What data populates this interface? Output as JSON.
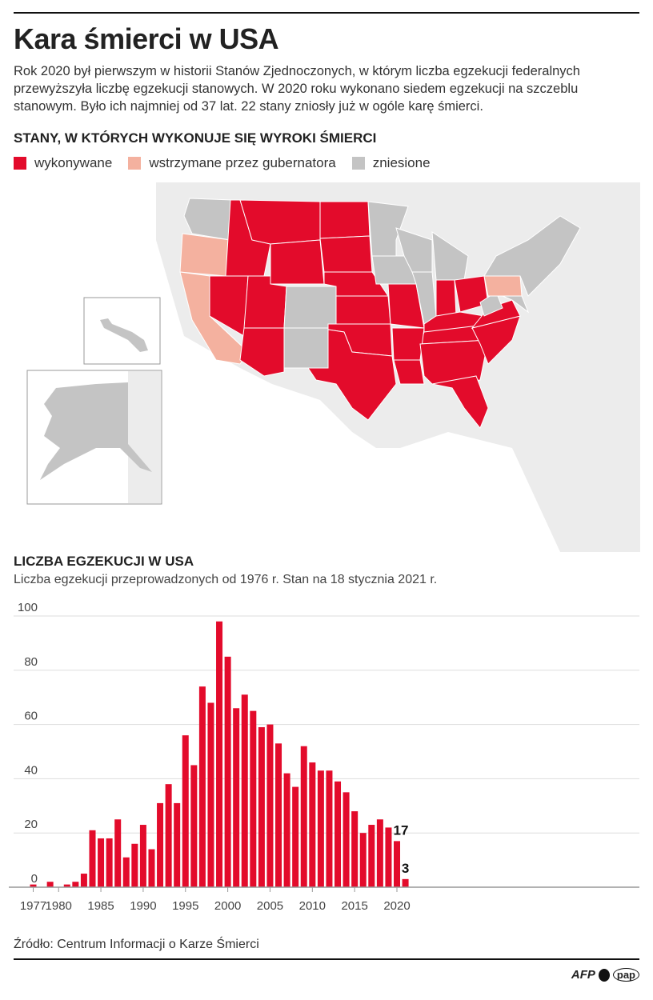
{
  "title": "Kara śmierci w USA",
  "intro": "Rok 2020 był pierwszym w historii Stanów Zjednoczonych, w którym liczba egzekucji federalnych przewyższyła liczbę egzekucji stanowych. W 2020 roku wykonano siedem egzekucji na szczeblu stanowym. Było ich najmniej od 37 lat. 22 stany zniosły już w ogóle karę śmierci.",
  "map": {
    "heading": "STANY, W KTÓRYCH WYKONUJE SIĘ WYROKI ŚMIERCI",
    "legend": [
      {
        "label": "wykonywane",
        "color": "#e30b2b"
      },
      {
        "label": "wstrzymane przez gubernatora",
        "color": "#f4b19f"
      },
      {
        "label": "zniesione",
        "color": "#c4c4c4"
      }
    ]
  },
  "chart_heading": "LICZBA EGZEKUCJI W USA",
  "chart_subtitle": "Liczba egzekucji przeprowadzonych od 1976 r. Stan na 18 stycznia 2021 r.",
  "chart_data": {
    "type": "bar",
    "title": "LICZBA EGZEKUCJI W USA",
    "color": "#e30b2b",
    "ylim": [
      0,
      100
    ],
    "yticks": [
      0,
      20,
      40,
      60,
      80,
      100
    ],
    "xticks": [
      1977,
      1980,
      1985,
      1990,
      1995,
      2000,
      2005,
      2010,
      2015,
      2020
    ],
    "grid": true,
    "categories": [
      1977,
      1978,
      1979,
      1980,
      1981,
      1982,
      1983,
      1984,
      1985,
      1986,
      1987,
      1988,
      1989,
      1990,
      1991,
      1992,
      1993,
      1994,
      1995,
      1996,
      1997,
      1998,
      1999,
      2000,
      2001,
      2002,
      2003,
      2004,
      2005,
      2006,
      2007,
      2008,
      2009,
      2010,
      2011,
      2012,
      2013,
      2014,
      2015,
      2016,
      2017,
      2018,
      2019,
      2020,
      2021
    ],
    "values": [
      1,
      0,
      2,
      0,
      1,
      2,
      5,
      21,
      18,
      18,
      25,
      11,
      16,
      23,
      14,
      31,
      38,
      31,
      56,
      45,
      74,
      68,
      98,
      85,
      66,
      71,
      65,
      59,
      60,
      53,
      42,
      37,
      52,
      46,
      43,
      43,
      39,
      35,
      28,
      20,
      23,
      25,
      22,
      17,
      3
    ],
    "data_labels": [
      {
        "x": 2020,
        "label": "17"
      },
      {
        "x": 2021,
        "label": "3"
      }
    ]
  },
  "source": "Źródło: Centrum Informacji o Karze Śmierci",
  "logos": {
    "afp": "AFP",
    "pap": "pap"
  }
}
